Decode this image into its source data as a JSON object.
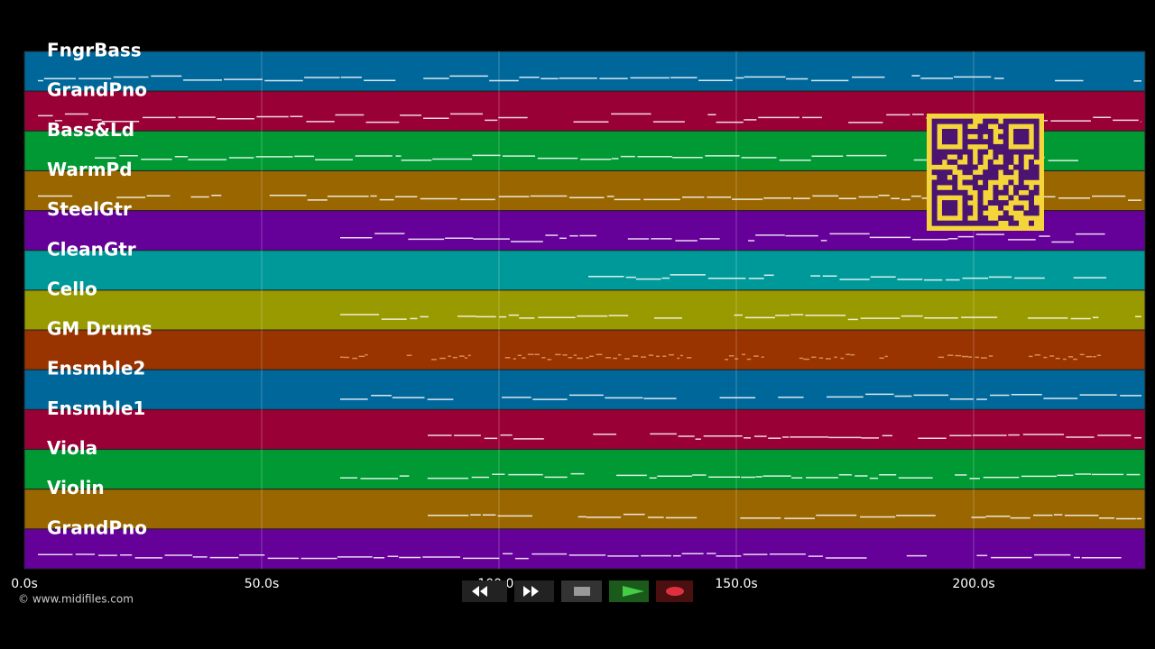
{
  "tracks": [
    {
      "name": "FngrBass",
      "color": "#00679a"
    },
    {
      "name": "GrandPno",
      "color": "#990035"
    },
    {
      "name": "Bass&Ld",
      "color": "#009933"
    },
    {
      "name": "WarmPd",
      "color": "#996600"
    },
    {
      "name": "SteelGtr",
      "color": "#650099"
    },
    {
      "name": "CleanGtr",
      "color": "#009999"
    },
    {
      "name": "Cello",
      "color": "#999900"
    },
    {
      "name": "GM Drums",
      "color": "#993300"
    },
    {
      "name": "Ensmble2",
      "color": "#00679a"
    },
    {
      "name": "Ensmble1",
      "color": "#990035"
    },
    {
      "name": "Viola",
      "color": "#009933"
    },
    {
      "name": "Violin",
      "color": "#996600"
    },
    {
      "name": "GrandPno",
      "color": "#650099"
    }
  ],
  "axis": {
    "ticks": [
      "0.0s",
      "50.0s",
      "100.0s",
      "150.0s",
      "200.0s"
    ]
  },
  "footer": {
    "credit": "© www.midifiles.com"
  }
}
